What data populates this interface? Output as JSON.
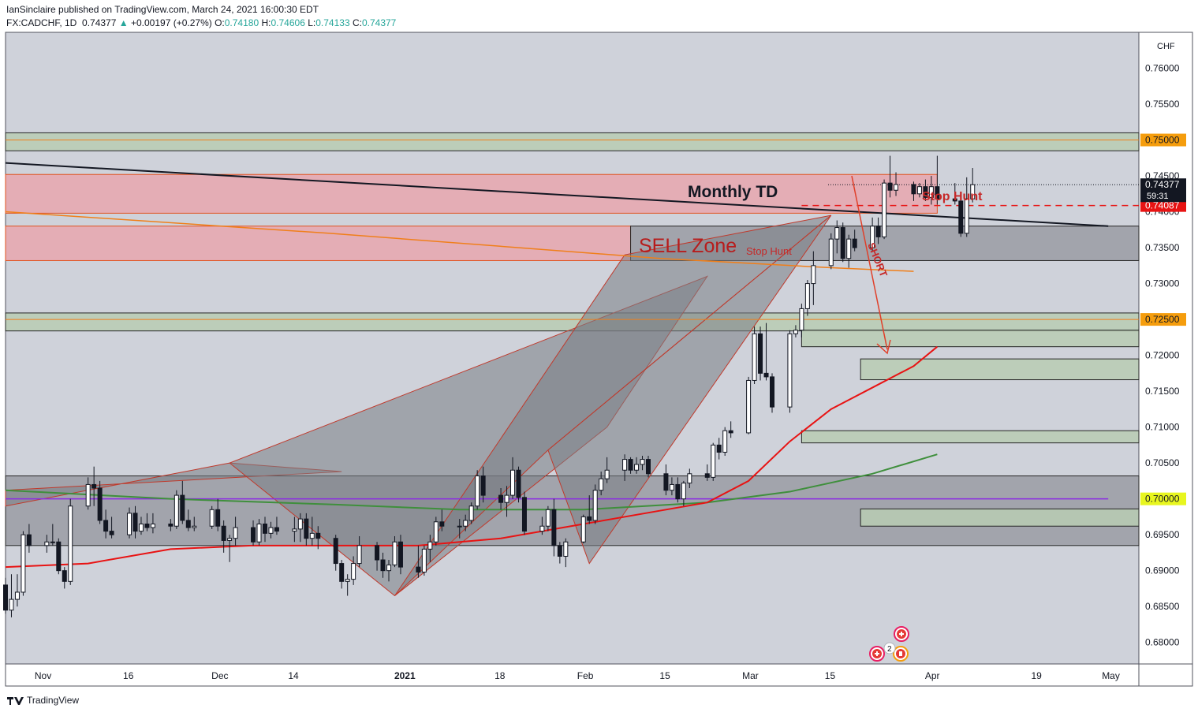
{
  "header": {
    "published": "IanSinclaire published on TradingView.com, March 24, 2021 16:00:30 EDT",
    "symbol": "FX:CADCHF, 1D",
    "last": "0.74377",
    "change": "+0.00197 (+0.27%)",
    "o_label": "O:",
    "o": "0.74180",
    "h_label": "H:",
    "h": "0.74606",
    "l_label": "L:",
    "l": "0.74133",
    "c_label": "C:",
    "c": "0.74377"
  },
  "footer": {
    "brand": "TradingView"
  },
  "colors": {
    "bg": "#cfd2da",
    "pink": "#e8a7ae",
    "green": "#b9ccb3",
    "gray": "#9a9ca3",
    "up": "#ffffff",
    "down": "#131722",
    "ema_red": "#e81313",
    "ema_green": "#3f8f3c",
    "orange": "#f07f1a",
    "purple": "#8a2be2"
  },
  "chart_data": {
    "type": "candlestick",
    "currency": "CHF",
    "ylim": [
      0.677,
      0.765
    ],
    "y_ticks": [
      "0.76000",
      "0.75500",
      "0.75000",
      "0.74500",
      "0.74000",
      "0.73500",
      "0.73000",
      "0.72500",
      "0.72000",
      "0.71500",
      "0.71000",
      "0.70500",
      "0.70000",
      "0.69500",
      "0.69000",
      "0.68500",
      "0.68000"
    ],
    "x_ticks": [
      "Nov",
      "16",
      "Dec",
      "14",
      "2021",
      "18",
      "Feb",
      "15",
      "Mar",
      "15",
      "Apr",
      "19",
      "May"
    ],
    "price_labels": [
      {
        "text": "0.75000",
        "value": 0.75,
        "color": "#f59d0d"
      },
      {
        "text": "0.72500",
        "value": 0.725,
        "color": "#f59d0d"
      },
      {
        "text": "0.70000",
        "value": 0.7,
        "color": "#e8f61f"
      },
      {
        "text": "0.74087",
        "value": 0.74087,
        "color": "#e81313"
      }
    ],
    "last_price": {
      "text": "0.74377",
      "countdown": "59:31",
      "value": 0.74377
    },
    "annotations": {
      "monthly_td": "Monthly TD",
      "sell_zone": "SELL Zone",
      "stop_hunt_1": "Stop Hunt",
      "stop_hunt_2": "Stop Hunt",
      "short": "SHORT"
    },
    "events": {
      "badge_count": "2"
    },
    "zones": [
      {
        "kind": "green",
        "low": 0.7485,
        "high": 0.751,
        "from": "Oct",
        "to": "May"
      },
      {
        "kind": "pink",
        "low": 0.7398,
        "high": 0.7452,
        "from": "Oct",
        "to": "Apr 2"
      },
      {
        "kind": "pink",
        "low": 0.7332,
        "high": 0.738,
        "from": "Oct",
        "to": "Feb 9"
      },
      {
        "kind": "gray",
        "low": 0.7332,
        "high": 0.738,
        "from": "Feb 9",
        "to": "May"
      },
      {
        "kind": "green",
        "low": 0.7234,
        "high": 0.7259,
        "from": "Oct",
        "to": "May"
      },
      {
        "kind": "green",
        "low": 0.7212,
        "high": 0.7235,
        "from": "Mar 10",
        "to": "May"
      },
      {
        "kind": "green",
        "low": 0.7166,
        "high": 0.7195,
        "from": "Mar 20",
        "to": "May"
      },
      {
        "kind": "green",
        "low": 0.7078,
        "high": 0.7095,
        "from": "Mar 10",
        "to": "May"
      },
      {
        "kind": "gray",
        "low": 0.6935,
        "high": 0.7032,
        "from": "Oct",
        "to": "May"
      },
      {
        "kind": "green",
        "low": 0.6962,
        "high": 0.6986,
        "from": "Mar 20",
        "to": "May"
      }
    ],
    "x_start": "2020-10-26",
    "ohlc": [
      [
        0.688,
        0.689,
        0.684,
        0.6845
      ],
      [
        0.6845,
        0.6895,
        0.6835,
        0.686
      ],
      [
        0.686,
        0.6895,
        0.685,
        0.687
      ],
      [
        0.687,
        0.6955,
        0.6865,
        0.695
      ],
      [
        0.695,
        0.6965,
        0.6925,
        0.6935
      ],
      [
        0.6935,
        0.695,
        0.6925,
        0.694
      ],
      [
        0.694,
        0.6965,
        0.6935,
        0.694
      ],
      [
        0.694,
        0.6945,
        0.6895,
        0.69
      ],
      [
        0.69,
        0.6905,
        0.6875,
        0.6885
      ],
      [
        0.6885,
        0.7,
        0.688,
        0.699
      ],
      [
        0.699,
        0.703,
        0.6985,
        0.702
      ],
      [
        0.702,
        0.7045,
        0.699,
        0.7015
      ],
      [
        0.7015,
        0.7025,
        0.6965,
        0.697
      ],
      [
        0.697,
        0.6985,
        0.6945,
        0.6955
      ],
      [
        0.6955,
        0.6975,
        0.6945,
        0.695
      ],
      [
        0.695,
        0.6988,
        0.6945,
        0.698
      ],
      [
        0.698,
        0.699,
        0.6945,
        0.6955
      ],
      [
        0.6955,
        0.6975,
        0.695,
        0.6965
      ],
      [
        0.6965,
        0.698,
        0.6955,
        0.696
      ],
      [
        0.696,
        0.698,
        0.6952,
        0.6965
      ],
      [
        0.6965,
        0.6972,
        0.6955,
        0.6962
      ],
      [
        0.6962,
        0.7012,
        0.6958,
        0.7005
      ],
      [
        0.7005,
        0.7025,
        0.6965,
        0.697
      ],
      [
        0.697,
        0.6985,
        0.6955,
        0.696
      ],
      [
        0.696,
        0.6975,
        0.6955,
        0.6962
      ],
      [
        0.6962,
        0.699,
        0.6958,
        0.6985
      ],
      [
        0.6985,
        0.7,
        0.6955,
        0.6962
      ],
      [
        0.6962,
        0.697,
        0.6925,
        0.6942
      ],
      [
        0.6942,
        0.695,
        0.6912,
        0.6945
      ],
      [
        0.6945,
        0.6975,
        0.6935,
        0.696
      ],
      [
        0.696,
        0.697,
        0.6935,
        0.694
      ],
      [
        0.694,
        0.6972,
        0.6935,
        0.6965
      ],
      [
        0.6965,
        0.6975,
        0.694,
        0.6952
      ],
      [
        0.6952,
        0.6968,
        0.6945,
        0.696
      ],
      [
        0.696,
        0.6975,
        0.695,
        0.6955
      ],
      [
        0.6955,
        0.6975,
        0.694,
        0.6958
      ],
      [
        0.6958,
        0.698,
        0.694,
        0.6972
      ],
      [
        0.6972,
        0.698,
        0.6935,
        0.6945
      ],
      [
        0.6945,
        0.6975,
        0.6935,
        0.6952
      ],
      [
        0.6952,
        0.6962,
        0.693,
        0.6945
      ],
      [
        0.6945,
        0.695,
        0.69,
        0.691
      ],
      [
        0.691,
        0.6915,
        0.6875,
        0.6885
      ],
      [
        0.6885,
        0.6895,
        0.6865,
        0.6888
      ],
      [
        0.6888,
        0.692,
        0.688,
        0.691
      ],
      [
        0.691,
        0.6948,
        0.6905,
        0.6935
      ],
      [
        0.6935,
        0.694,
        0.69,
        0.6915
      ],
      [
        0.6915,
        0.6925,
        0.689,
        0.69
      ],
      [
        0.69,
        0.6915,
        0.6885,
        0.6908
      ],
      [
        0.6908,
        0.6948,
        0.6905,
        0.694
      ],
      [
        0.694,
        0.695,
        0.6895,
        0.6905
      ],
      [
        0.6905,
        0.6935,
        0.689,
        0.6898
      ],
      [
        0.6898,
        0.6935,
        0.6893,
        0.693
      ],
      [
        0.693,
        0.695,
        0.6912,
        0.694
      ],
      [
        0.694,
        0.6975,
        0.6935,
        0.6968
      ],
      [
        0.6968,
        0.6985,
        0.6955,
        0.6962
      ],
      [
        0.6962,
        0.6972,
        0.6945,
        0.6962
      ],
      [
        0.6962,
        0.6978,
        0.6955,
        0.697
      ],
      [
        0.697,
        0.6995,
        0.6965,
        0.699
      ],
      [
        0.699,
        0.704,
        0.6985,
        0.7032
      ],
      [
        0.7032,
        0.7045,
        0.6995,
        0.7005
      ],
      [
        0.7005,
        0.7015,
        0.6985,
        0.6995
      ],
      [
        0.6995,
        0.7018,
        0.6975,
        0.7005
      ],
      [
        0.7005,
        0.7058,
        0.7,
        0.704
      ],
      [
        0.704,
        0.7045,
        0.6995,
        0.7002
      ],
      [
        0.7002,
        0.701,
        0.695,
        0.6955
      ],
      [
        0.6955,
        0.6975,
        0.695,
        0.6962
      ],
      [
        0.6962,
        0.699,
        0.6955,
        0.6985
      ],
      [
        0.6985,
        0.7,
        0.692,
        0.6935
      ],
      [
        0.6935,
        0.694,
        0.691,
        0.692
      ],
      [
        0.692,
        0.6945,
        0.6905,
        0.694
      ],
      [
        0.694,
        0.6978,
        0.6938,
        0.6975
      ],
      [
        0.6975,
        0.7005,
        0.6965,
        0.697
      ],
      [
        0.697,
        0.702,
        0.6965,
        0.7012
      ],
      [
        0.7012,
        0.7038,
        0.7005,
        0.7028
      ],
      [
        0.7028,
        0.7058,
        0.7022,
        0.704
      ],
      [
        0.704,
        0.7062,
        0.7025,
        0.7055
      ],
      [
        0.7055,
        0.7058,
        0.7035,
        0.704
      ],
      [
        0.704,
        0.7058,
        0.7035,
        0.7048
      ],
      [
        0.7048,
        0.706,
        0.704,
        0.7055
      ],
      [
        0.7055,
        0.706,
        0.703,
        0.7035
      ],
      [
        0.7035,
        0.7048,
        0.7005,
        0.7012
      ],
      [
        0.7012,
        0.703,
        0.7005,
        0.702
      ],
      [
        0.702,
        0.703,
        0.6995,
        0.7
      ],
      [
        0.7,
        0.7025,
        0.699,
        0.7022
      ],
      [
        0.7022,
        0.7042,
        0.7015,
        0.7035
      ],
      [
        0.7035,
        0.7048,
        0.7025,
        0.703
      ],
      [
        0.703,
        0.7078,
        0.7025,
        0.7075
      ],
      [
        0.7075,
        0.7085,
        0.7055,
        0.7065
      ],
      [
        0.7065,
        0.71,
        0.706,
        0.7095
      ],
      [
        0.7095,
        0.7108,
        0.7085,
        0.7092
      ],
      [
        0.7092,
        0.717,
        0.709,
        0.7165
      ],
      [
        0.7165,
        0.724,
        0.716,
        0.723
      ],
      [
        0.723,
        0.724,
        0.7165,
        0.7175
      ],
      [
        0.7175,
        0.7245,
        0.7165,
        0.717
      ],
      [
        0.717,
        0.7175,
        0.712,
        0.7128
      ],
      [
        0.7128,
        0.7235,
        0.712,
        0.723
      ],
      [
        0.723,
        0.7242,
        0.7225,
        0.7235
      ],
      [
        0.7235,
        0.7272,
        0.7225,
        0.7265
      ],
      [
        0.7265,
        0.7305,
        0.7255,
        0.73
      ],
      [
        0.73,
        0.7345,
        0.727,
        0.7325
      ],
      [
        0.7325,
        0.737,
        0.732,
        0.7362
      ],
      [
        0.7362,
        0.7388,
        0.7342,
        0.7378
      ],
      [
        0.7378,
        0.7385,
        0.733,
        0.7335
      ],
      [
        0.7335,
        0.7368,
        0.7322,
        0.7362
      ],
      [
        0.7362,
        0.7375,
        0.7345,
        0.735
      ],
      [
        0.735,
        0.7392,
        0.7345,
        0.738
      ],
      [
        0.738,
        0.7392,
        0.7355,
        0.7365
      ],
      [
        0.7365,
        0.7445,
        0.7362,
        0.744
      ],
      [
        0.744,
        0.7478,
        0.742,
        0.743
      ],
      [
        0.743,
        0.7455,
        0.7422,
        0.7438
      ],
      [
        0.7438,
        0.7442,
        0.7415,
        0.7425
      ],
      [
        0.7425,
        0.744,
        0.742,
        0.7435
      ],
      [
        0.7435,
        0.7445,
        0.7415,
        0.742
      ],
      [
        0.742,
        0.745,
        0.741,
        0.7435
      ],
      [
        0.7435,
        0.7478,
        0.741,
        0.7418
      ],
      [
        0.7418,
        0.744,
        0.741,
        0.7415
      ],
      [
        0.7415,
        0.742,
        0.7365,
        0.737
      ],
      [
        0.737,
        0.7448,
        0.7365,
        0.7418
      ],
      [
        0.7418,
        0.7461,
        0.7413,
        0.74377
      ]
    ],
    "lines": [
      {
        "name": "Monthly TD trendline",
        "color": "#131722",
        "points": [
          [
            "2020-10-26",
            0.7468
          ],
          [
            "2021-05-01",
            0.738
          ]
        ]
      },
      {
        "name": "orange curve",
        "color": "#f07f1a",
        "points": [
          [
            "2020-10-26",
            0.74
          ],
          [
            "2020-12-20",
            0.737
          ],
          [
            "2021-02-14",
            0.7335
          ],
          [
            "2021-03-15",
            0.7322
          ],
          [
            "2021-03-29",
            0.7317
          ]
        ]
      },
      {
        "name": "purple level",
        "color": "#8a2be2",
        "points": [
          [
            "2020-10-26",
            0.7
          ],
          [
            "2021-05-01",
            0.7
          ]
        ]
      }
    ],
    "ema_red": [
      [
        0,
        0.6905
      ],
      [
        10,
        0.691
      ],
      [
        20,
        0.693
      ],
      [
        30,
        0.6935
      ],
      [
        40,
        0.6935
      ],
      [
        50,
        0.6935
      ],
      [
        60,
        0.6945
      ],
      [
        70,
        0.6965
      ],
      [
        80,
        0.6985
      ],
      [
        85,
        0.6995
      ],
      [
        90,
        0.7025
      ],
      [
        95,
        0.708
      ],
      [
        100,
        0.7125
      ],
      [
        105,
        0.7155
      ],
      [
        110,
        0.7185
      ],
      [
        114,
        0.7212
      ]
    ],
    "ema_green": [
      [
        0,
        0.7012
      ],
      [
        20,
        0.7
      ],
      [
        40,
        0.6992
      ],
      [
        55,
        0.6985
      ],
      [
        70,
        0.6985
      ],
      [
        85,
        0.6995
      ],
      [
        95,
        0.701
      ],
      [
        105,
        0.7035
      ],
      [
        114,
        0.7062
      ]
    ],
    "harmonic_fill": [
      {
        "points": [
          [
            0,
            0.699
          ],
          [
            28,
            0.705
          ],
          [
            41,
            0.7038
          ],
          [
            0,
            0.7012
          ]
        ]
      },
      {
        "points": [
          [
            28,
            0.705
          ],
          [
            48,
            0.6865
          ],
          [
            74,
            0.71
          ],
          [
            85,
            0.731
          ]
        ]
      },
      {
        "points": [
          [
            48,
            0.6865
          ],
          [
            66,
            0.7068
          ],
          [
            100,
            0.7395
          ],
          [
            75,
            0.734
          ]
        ]
      },
      {
        "points": [
          [
            66,
            0.7068
          ],
          [
            71,
            0.691
          ],
          [
            100,
            0.7395
          ]
        ]
      }
    ]
  }
}
